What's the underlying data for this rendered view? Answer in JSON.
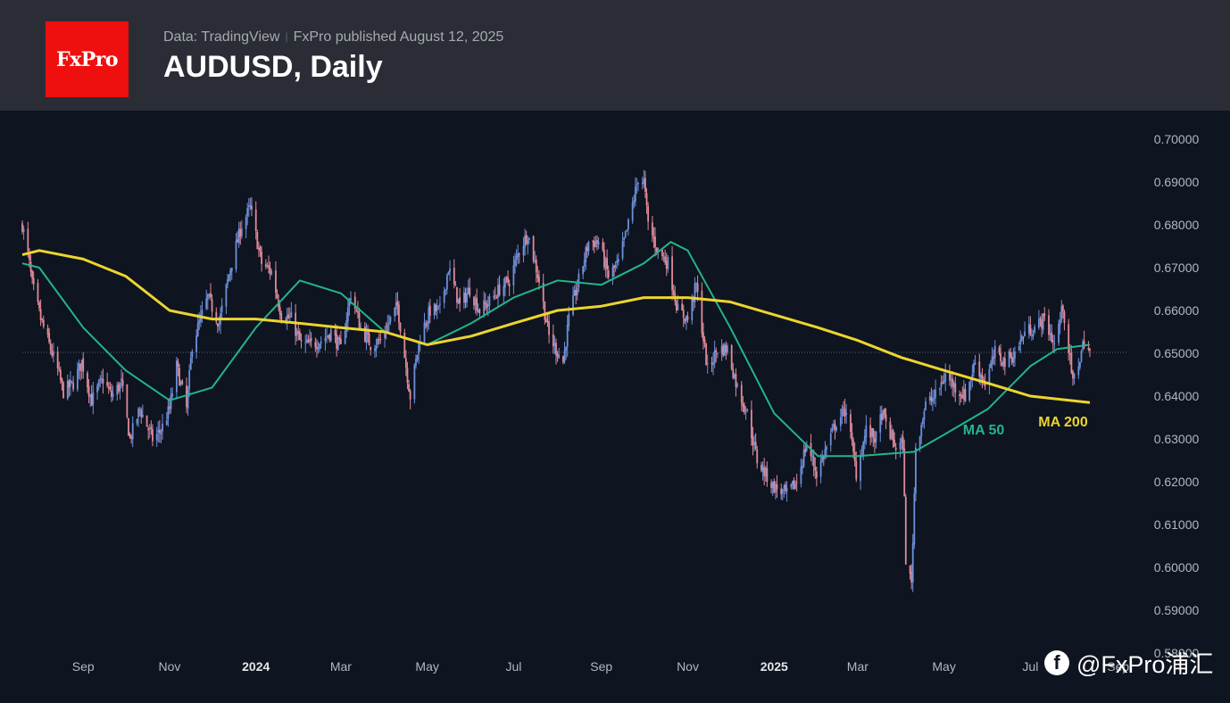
{
  "header": {
    "logo": "FxPro",
    "source": "Data: TradingView",
    "separator": "|",
    "published": "FxPro published August 12, 2025",
    "title": "AUDUSD, Daily"
  },
  "watermark": {
    "icon": "facebook-icon",
    "text": "@FxPro浦汇"
  },
  "colors": {
    "background": "#0e1420",
    "header": "#2a2d35",
    "logo": "#f00f0f",
    "up": "#6e8fd8",
    "down": "#e08a98",
    "ma50": "#22b58a",
    "ma200": "#ecd52e"
  },
  "chart_data": {
    "type": "candlestick",
    "title": "AUDUSD, Daily",
    "ylim": [
      0.585,
      0.705
    ],
    "y_ticks": [
      "0.70000",
      "0.69000",
      "0.68000",
      "0.67000",
      "0.66000",
      "0.65000",
      "0.64000",
      "0.63000",
      "0.62000",
      "0.61000",
      "0.60000",
      "0.59000",
      "0.58000"
    ],
    "x_ticks": [
      {
        "label": "Sep",
        "date": "2023-09-01",
        "bold": false
      },
      {
        "label": "Nov",
        "date": "2023-11-01",
        "bold": false
      },
      {
        "label": "2024",
        "date": "2024-01-01",
        "bold": true
      },
      {
        "label": "Mar",
        "date": "2024-03-01",
        "bold": false
      },
      {
        "label": "May",
        "date": "2024-05-01",
        "bold": false
      },
      {
        "label": "Jul",
        "date": "2024-07-01",
        "bold": false
      },
      {
        "label": "Sep",
        "date": "2024-09-01",
        "bold": false
      },
      {
        "label": "Nov",
        "date": "2024-11-01",
        "bold": false
      },
      {
        "label": "2025",
        "date": "2025-01-01",
        "bold": true
      },
      {
        "label": "Mar",
        "date": "2025-03-01",
        "bold": false
      },
      {
        "label": "May",
        "date": "2025-05-01",
        "bold": false
      },
      {
        "label": "Jul",
        "date": "2025-07-01",
        "bold": false
      },
      {
        "label": "Sep",
        "date": "2025-09-01",
        "bold": false
      }
    ],
    "last_close": 0.6502,
    "close_path": [
      {
        "date": "2023-07-20",
        "value": 0.68
      },
      {
        "date": "2023-07-24",
        "value": 0.673
      },
      {
        "date": "2023-07-27",
        "value": 0.666
      },
      {
        "date": "2023-08-02",
        "value": 0.658
      },
      {
        "date": "2023-08-08",
        "value": 0.652
      },
      {
        "date": "2023-08-14",
        "value": 0.646
      },
      {
        "date": "2023-08-18",
        "value": 0.641
      },
      {
        "date": "2023-08-25",
        "value": 0.643
      },
      {
        "date": "2023-08-31",
        "value": 0.648
      },
      {
        "date": "2023-09-07",
        "value": 0.639
      },
      {
        "date": "2023-09-15",
        "value": 0.644
      },
      {
        "date": "2023-09-21",
        "value": 0.64
      },
      {
        "date": "2023-09-28",
        "value": 0.643
      },
      {
        "date": "2023-10-04",
        "value": 0.63
      },
      {
        "date": "2023-10-11",
        "value": 0.637
      },
      {
        "date": "2023-10-20",
        "value": 0.63
      },
      {
        "date": "2023-10-26",
        "value": 0.632
      },
      {
        "date": "2023-11-01",
        "value": 0.637
      },
      {
        "date": "2023-11-06",
        "value": 0.647
      },
      {
        "date": "2023-11-13",
        "value": 0.637
      },
      {
        "date": "2023-11-17",
        "value": 0.652
      },
      {
        "date": "2023-11-28",
        "value": 0.663
      },
      {
        "date": "2023-12-06",
        "value": 0.657
      },
      {
        "date": "2023-12-14",
        "value": 0.67
      },
      {
        "date": "2023-12-22",
        "value": 0.68
      },
      {
        "date": "2023-12-28",
        "value": 0.684
      },
      {
        "date": "2024-01-05",
        "value": 0.671
      },
      {
        "date": "2024-01-12",
        "value": 0.669
      },
      {
        "date": "2024-01-19",
        "value": 0.659
      },
      {
        "date": "2024-01-26",
        "value": 0.658
      },
      {
        "date": "2024-02-02",
        "value": 0.652
      },
      {
        "date": "2024-02-09",
        "value": 0.652
      },
      {
        "date": "2024-02-16",
        "value": 0.653
      },
      {
        "date": "2024-02-23",
        "value": 0.655
      },
      {
        "date": "2024-03-01",
        "value": 0.651
      },
      {
        "date": "2024-03-08",
        "value": 0.664
      },
      {
        "date": "2024-03-15",
        "value": 0.656
      },
      {
        "date": "2024-03-22",
        "value": 0.652
      },
      {
        "date": "2024-03-29",
        "value": 0.653
      },
      {
        "date": "2024-04-05",
        "value": 0.658
      },
      {
        "date": "2024-04-10",
        "value": 0.661
      },
      {
        "date": "2024-04-19",
        "value": 0.64
      },
      {
        "date": "2024-04-26",
        "value": 0.654
      },
      {
        "date": "2024-05-03",
        "value": 0.66
      },
      {
        "date": "2024-05-10",
        "value": 0.66
      },
      {
        "date": "2024-05-16",
        "value": 0.67
      },
      {
        "date": "2024-05-24",
        "value": 0.661
      },
      {
        "date": "2024-05-31",
        "value": 0.665
      },
      {
        "date": "2024-06-07",
        "value": 0.66
      },
      {
        "date": "2024-06-14",
        "value": 0.662
      },
      {
        "date": "2024-06-21",
        "value": 0.665
      },
      {
        "date": "2024-06-28",
        "value": 0.667
      },
      {
        "date": "2024-07-05",
        "value": 0.674
      },
      {
        "date": "2024-07-11",
        "value": 0.678
      },
      {
        "date": "2024-07-19",
        "value": 0.667
      },
      {
        "date": "2024-07-26",
        "value": 0.654
      },
      {
        "date": "2024-08-05",
        "value": 0.648
      },
      {
        "date": "2024-08-09",
        "value": 0.658
      },
      {
        "date": "2024-08-16",
        "value": 0.667
      },
      {
        "date": "2024-08-23",
        "value": 0.676
      },
      {
        "date": "2024-08-30",
        "value": 0.676
      },
      {
        "date": "2024-09-06",
        "value": 0.668
      },
      {
        "date": "2024-09-13",
        "value": 0.671
      },
      {
        "date": "2024-09-20",
        "value": 0.68
      },
      {
        "date": "2024-09-27",
        "value": 0.691
      },
      {
        "date": "2024-10-01",
        "value": 0.69
      },
      {
        "date": "2024-10-04",
        "value": 0.68
      },
      {
        "date": "2024-10-11",
        "value": 0.674
      },
      {
        "date": "2024-10-18",
        "value": 0.671
      },
      {
        "date": "2024-10-25",
        "value": 0.66
      },
      {
        "date": "2024-11-01",
        "value": 0.658
      },
      {
        "date": "2024-11-07",
        "value": 0.666
      },
      {
        "date": "2024-11-15",
        "value": 0.646
      },
      {
        "date": "2024-11-22",
        "value": 0.651
      },
      {
        "date": "2024-11-29",
        "value": 0.651
      },
      {
        "date": "2024-12-06",
        "value": 0.642
      },
      {
        "date": "2024-12-13",
        "value": 0.636
      },
      {
        "date": "2024-12-20",
        "value": 0.625
      },
      {
        "date": "2024-12-31",
        "value": 0.619
      },
      {
        "date": "2025-01-10",
        "value": 0.617
      },
      {
        "date": "2025-01-17",
        "value": 0.62
      },
      {
        "date": "2025-01-24",
        "value": 0.629
      },
      {
        "date": "2025-01-31",
        "value": 0.622
      },
      {
        "date": "2025-02-07",
        "value": 0.628
      },
      {
        "date": "2025-02-14",
        "value": 0.634
      },
      {
        "date": "2025-02-21",
        "value": 0.637
      },
      {
        "date": "2025-02-28",
        "value": 0.622
      },
      {
        "date": "2025-03-07",
        "value": 0.632
      },
      {
        "date": "2025-03-14",
        "value": 0.63
      },
      {
        "date": "2025-03-18",
        "value": 0.636
      },
      {
        "date": "2025-03-28",
        "value": 0.628
      },
      {
        "date": "2025-04-02",
        "value": 0.629
      },
      {
        "date": "2025-04-04",
        "value": 0.602
      },
      {
        "date": "2025-04-08",
        "value": 0.596
      },
      {
        "date": "2025-04-11",
        "value": 0.628
      },
      {
        "date": "2025-04-18",
        "value": 0.638
      },
      {
        "date": "2025-04-25",
        "value": 0.64
      },
      {
        "date": "2025-05-02",
        "value": 0.645
      },
      {
        "date": "2025-05-09",
        "value": 0.642
      },
      {
        "date": "2025-05-16",
        "value": 0.64
      },
      {
        "date": "2025-05-23",
        "value": 0.648
      },
      {
        "date": "2025-05-30",
        "value": 0.643
      },
      {
        "date": "2025-06-06",
        "value": 0.65
      },
      {
        "date": "2025-06-13",
        "value": 0.648
      },
      {
        "date": "2025-06-20",
        "value": 0.65
      },
      {
        "date": "2025-06-27",
        "value": 0.655
      },
      {
        "date": "2025-07-04",
        "value": 0.656
      },
      {
        "date": "2025-07-11",
        "value": 0.658
      },
      {
        "date": "2025-07-18",
        "value": 0.652
      },
      {
        "date": "2025-07-24",
        "value": 0.661
      },
      {
        "date": "2025-07-31",
        "value": 0.643
      },
      {
        "date": "2025-08-05",
        "value": 0.649
      },
      {
        "date": "2025-08-08",
        "value": 0.653
      },
      {
        "date": "2025-08-12",
        "value": 0.6502
      }
    ],
    "series": [
      {
        "name": "MA 50",
        "points": [
          {
            "date": "2023-07-20",
            "value": 0.671
          },
          {
            "date": "2023-08-01",
            "value": 0.67
          },
          {
            "date": "2023-09-01",
            "value": 0.656
          },
          {
            "date": "2023-10-01",
            "value": 0.646
          },
          {
            "date": "2023-11-01",
            "value": 0.639
          },
          {
            "date": "2023-12-01",
            "value": 0.642
          },
          {
            "date": "2024-01-01",
            "value": 0.656
          },
          {
            "date": "2024-02-01",
            "value": 0.667
          },
          {
            "date": "2024-03-01",
            "value": 0.664
          },
          {
            "date": "2024-04-01",
            "value": 0.655
          },
          {
            "date": "2024-05-01",
            "value": 0.652
          },
          {
            "date": "2024-06-01",
            "value": 0.657
          },
          {
            "date": "2024-07-01",
            "value": 0.663
          },
          {
            "date": "2024-08-01",
            "value": 0.667
          },
          {
            "date": "2024-09-01",
            "value": 0.666
          },
          {
            "date": "2024-10-01",
            "value": 0.671
          },
          {
            "date": "2024-10-20",
            "value": 0.676
          },
          {
            "date": "2024-11-01",
            "value": 0.674
          },
          {
            "date": "2024-12-01",
            "value": 0.656
          },
          {
            "date": "2025-01-01",
            "value": 0.636
          },
          {
            "date": "2025-02-01",
            "value": 0.626
          },
          {
            "date": "2025-03-01",
            "value": 0.626
          },
          {
            "date": "2025-04-10",
            "value": 0.627
          },
          {
            "date": "2025-05-01",
            "value": 0.631
          },
          {
            "date": "2025-06-01",
            "value": 0.637
          },
          {
            "date": "2025-07-01",
            "value": 0.647
          },
          {
            "date": "2025-07-20",
            "value": 0.651
          },
          {
            "date": "2025-08-12",
            "value": 0.652
          }
        ]
      },
      {
        "name": "MA 200",
        "points": [
          {
            "date": "2023-07-20",
            "value": 0.673
          },
          {
            "date": "2023-08-01",
            "value": 0.674
          },
          {
            "date": "2023-09-01",
            "value": 0.672
          },
          {
            "date": "2023-10-01",
            "value": 0.668
          },
          {
            "date": "2023-11-01",
            "value": 0.66
          },
          {
            "date": "2023-12-01",
            "value": 0.658
          },
          {
            "date": "2024-01-01",
            "value": 0.658
          },
          {
            "date": "2024-02-01",
            "value": 0.657
          },
          {
            "date": "2024-03-01",
            "value": 0.656
          },
          {
            "date": "2024-04-01",
            "value": 0.655
          },
          {
            "date": "2024-05-01",
            "value": 0.652
          },
          {
            "date": "2024-06-01",
            "value": 0.654
          },
          {
            "date": "2024-07-01",
            "value": 0.657
          },
          {
            "date": "2024-08-01",
            "value": 0.66
          },
          {
            "date": "2024-09-01",
            "value": 0.661
          },
          {
            "date": "2024-10-01",
            "value": 0.663
          },
          {
            "date": "2024-11-01",
            "value": 0.663
          },
          {
            "date": "2024-12-01",
            "value": 0.662
          },
          {
            "date": "2025-01-01",
            "value": 0.659
          },
          {
            "date": "2025-02-01",
            "value": 0.656
          },
          {
            "date": "2025-03-01",
            "value": 0.653
          },
          {
            "date": "2025-04-01",
            "value": 0.649
          },
          {
            "date": "2025-05-01",
            "value": 0.646
          },
          {
            "date": "2025-06-01",
            "value": 0.643
          },
          {
            "date": "2025-07-01",
            "value": 0.64
          },
          {
            "date": "2025-08-12",
            "value": 0.6385
          }
        ]
      }
    ],
    "labels": [
      {
        "text": "MA 200",
        "series": "MA 200",
        "color": "#ecd52e"
      },
      {
        "text": "MA 50",
        "series": "MA 50",
        "color": "#22b58a"
      }
    ]
  }
}
